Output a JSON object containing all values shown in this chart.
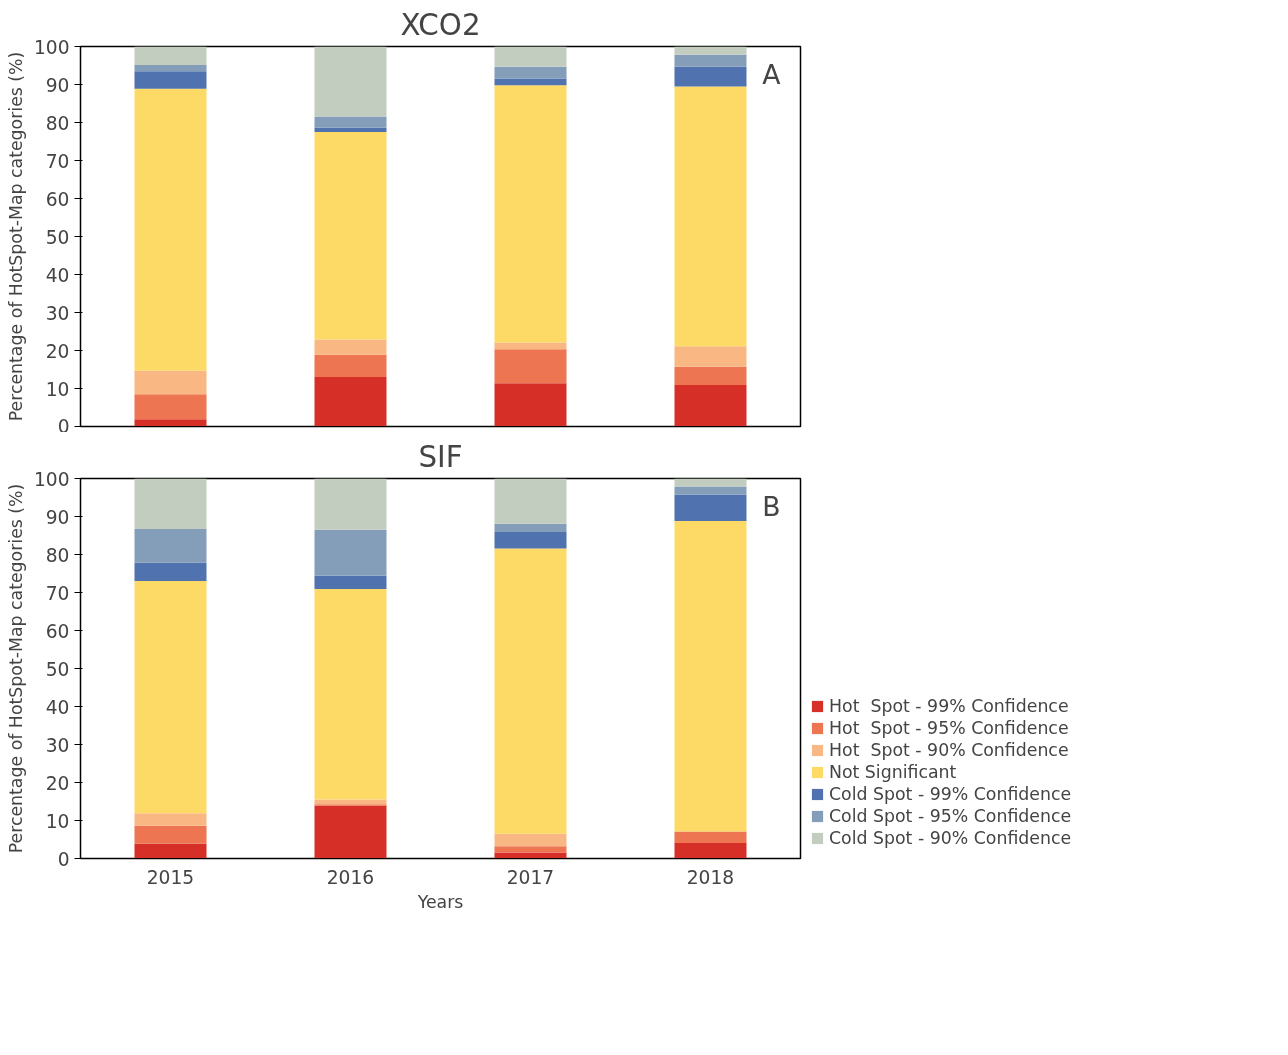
{
  "chart_data": [
    {
      "type": "bar",
      "title": "XCO2",
      "ylabel": "Percentage of HotSpot-Map categories (%)",
      "categories": [
        "2015",
        "2016",
        "2017",
        "2018"
      ],
      "stacked": true,
      "ylim": [
        0,
        100
      ],
      "yticks": [
        0,
        10,
        20,
        30,
        40,
        50,
        60,
        70,
        80,
        90,
        100
      ],
      "grid": false,
      "legend": false,
      "tick_labels": "y",
      "annotations": [
        "A"
      ],
      "series": [
        {
          "color": "#d62f27",
          "values": [
            1.9,
            13.0,
            11.4,
            10.9
          ]
        },
        {
          "color": "#ed7551",
          "values": [
            6.6,
            5.9,
            8.9,
            4.8
          ]
        },
        {
          "color": "#f9b784",
          "values": [
            6.2,
            4.0,
            1.8,
            5.4
          ]
        },
        {
          "color": "#fdd966",
          "values": [
            74.2,
            54.6,
            67.7,
            68.4
          ]
        },
        {
          "color": "#5072ae",
          "values": [
            4.6,
            1.2,
            1.8,
            5.2
          ]
        },
        {
          "color": "#849db8",
          "values": [
            1.6,
            2.9,
            3.1,
            3.1
          ]
        },
        {
          "color": "#c2cdbf",
          "values": [
            4.9,
            18.4,
            5.3,
            2.2
          ]
        }
      ]
    },
    {
      "type": "bar",
      "title": "SIF",
      "ylabel": "Percentage of HotSpot-Map categories (%)",
      "xlabel": "Years",
      "categories": [
        "2015",
        "2016",
        "2017",
        "2018"
      ],
      "stacked": true,
      "ylim": [
        0,
        100
      ],
      "yticks": [
        0,
        10,
        20,
        30,
        40,
        50,
        60,
        70,
        80,
        90,
        100
      ],
      "grid": false,
      "legend": "right",
      "annotations": [
        "B"
      ],
      "series": [
        {
          "name": "Hot  Spot - 99% Confidence",
          "color": "#d62f27",
          "values": [
            3.9,
            13.9,
            1.6,
            4.1
          ]
        },
        {
          "name": "Hot  Spot - 95% Confidence",
          "color": "#ed7551",
          "values": [
            4.7,
            0.4,
            1.6,
            3.0
          ]
        },
        {
          "name": "Hot  Spot - 90% Confidence",
          "color": "#f9b784",
          "values": [
            3.3,
            1.2,
            3.3,
            0
          ]
        },
        {
          "name": "Not Significant",
          "color": "#fdd966",
          "values": [
            61.1,
            55.4,
            75.1,
            81.7
          ]
        },
        {
          "name": "Cold Spot - 99% Confidence",
          "color": "#5072ae",
          "values": [
            4.8,
            3.5,
            4.3,
            6.9
          ]
        },
        {
          "name": "Cold Spot - 95% Confidence",
          "color": "#849db8",
          "values": [
            8.9,
            12.1,
            2.2,
            2.2
          ]
        },
        {
          "name": "Cold Spot - 90% Confidence",
          "color": "#c2cdbf",
          "values": [
            13.3,
            13.5,
            11.9,
            2.1
          ]
        }
      ]
    }
  ]
}
